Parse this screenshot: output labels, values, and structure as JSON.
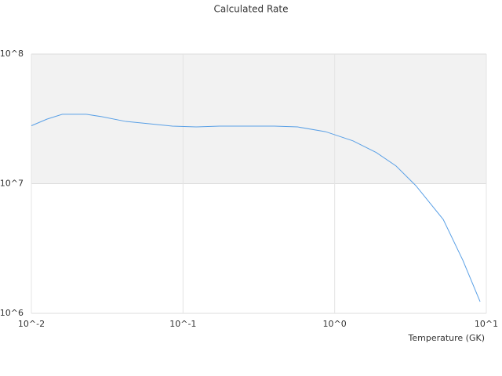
{
  "chart_data": {
    "type": "line",
    "title": "Calculated Rate",
    "x_label": "Temperature (GK)",
    "log_x": true,
    "log_y": true,
    "x": [
      0.01,
      0.0127,
      0.016,
      0.023,
      0.029,
      0.042,
      0.06,
      0.085,
      0.122,
      0.174,
      0.4,
      0.57,
      0.87,
      1.32,
      1.88,
      2.54,
      3.43,
      5.2,
      7.0,
      9.1
    ],
    "series": [
      {
        "color": "#5aa0e6",
        "values": [
          28000000,
          31500000,
          34300000,
          34300000,
          32900000,
          30200000,
          29000000,
          27800000,
          27400000,
          27800000,
          27800000,
          27400000,
          25200000,
          21400000,
          17400000,
          13700000,
          9660000,
          5300000,
          2570000,
          1230000
        ]
      }
    ],
    "xlim": [
      0.01,
      10
    ],
    "ylim": [
      1000000,
      100000000
    ],
    "xticks": [
      {
        "value": 0.01,
        "label": "10^-2"
      },
      {
        "value": 0.1,
        "label": "10^-1"
      },
      {
        "value": 1,
        "label": "10^0"
      },
      {
        "value": 10,
        "label": "10^1"
      }
    ],
    "yticks": [
      {
        "value": 1000000,
        "label": "10^6"
      },
      {
        "value": 10000000,
        "label": "10^7"
      },
      {
        "value": 100000000,
        "label": "10^8"
      }
    ]
  }
}
